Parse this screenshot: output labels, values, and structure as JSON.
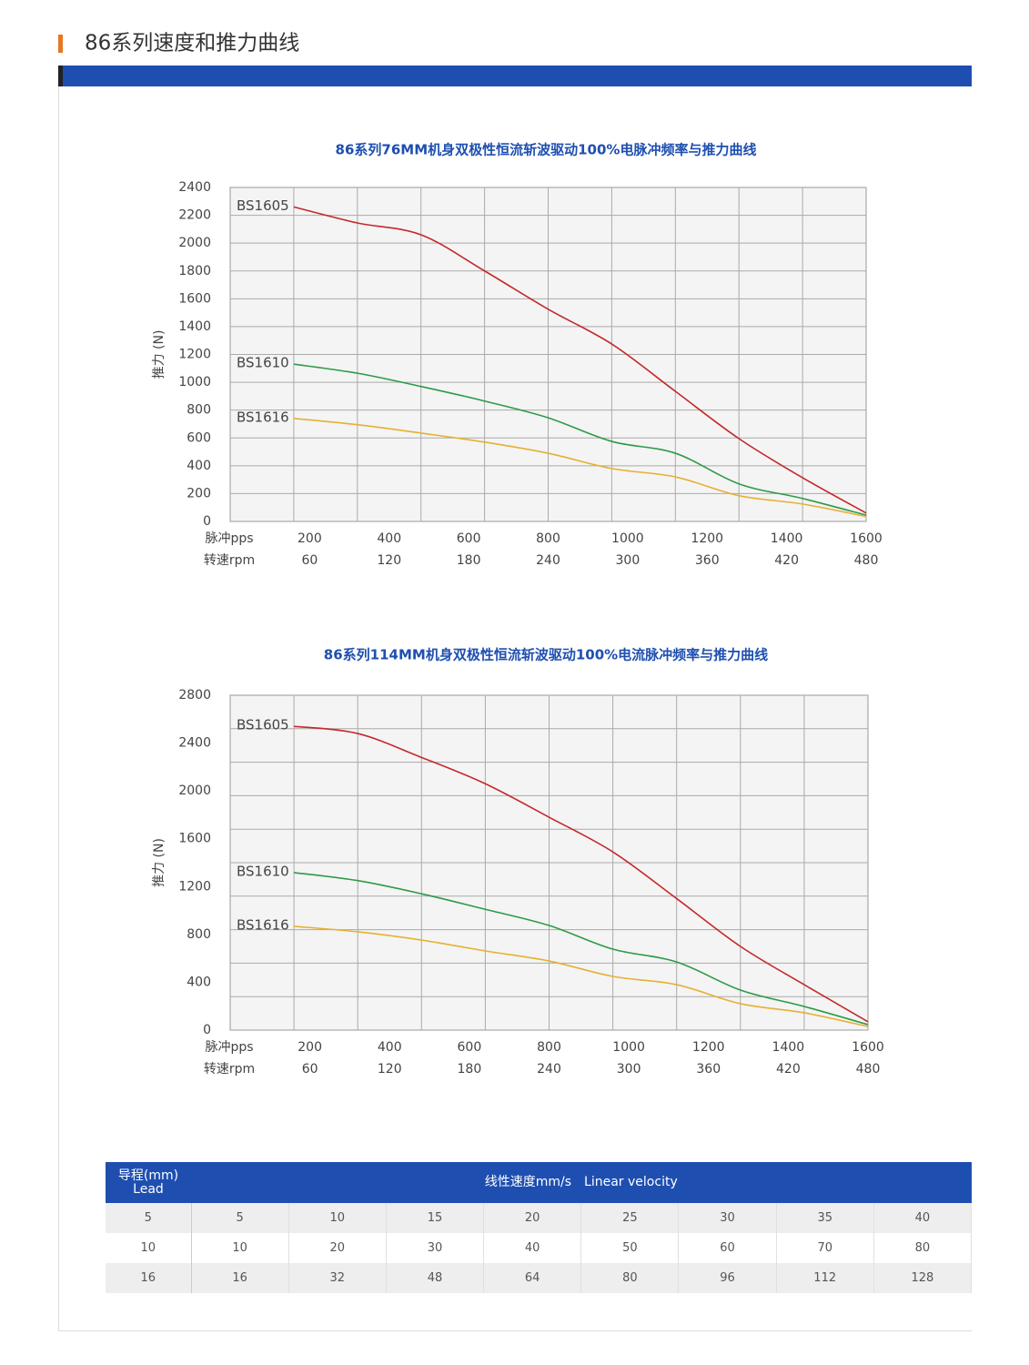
{
  "header": {
    "title": "86系列速度和推力曲线"
  },
  "chart_data": [
    {
      "type": "line",
      "title": "86系列76MM机身双极性恒流斩波驱动100%电脉冲频率与推力曲线",
      "ylabel": "推力 (N)",
      "xlabel": "脉冲pps",
      "rpm_label": "转速rpm",
      "x": [
        160,
        320,
        480,
        640,
        800,
        960,
        1120,
        1280,
        1440,
        1600
      ],
      "xlim": [
        0,
        1600
      ],
      "xticks": [
        200,
        400,
        600,
        800,
        1000,
        1200,
        1400,
        1600
      ],
      "rpm_ticks": [
        60,
        120,
        180,
        240,
        300,
        360,
        420,
        480
      ],
      "xgrid": [
        160,
        320,
        480,
        640,
        800,
        960,
        1120,
        1280,
        1440
      ],
      "ylim": [
        0,
        2400
      ],
      "yticks": [
        0,
        200,
        400,
        600,
        800,
        1000,
        1200,
        1400,
        1600,
        1800,
        2000,
        2200,
        2400
      ],
      "ygrid": [
        200,
        400,
        600,
        800,
        1000,
        1200,
        1400,
        1600,
        1800,
        2000,
        2200
      ],
      "series": [
        {
          "name": "BS1605",
          "color": "#c4292b",
          "values": [
            2260,
            2145,
            2060,
            1800,
            1525,
            1275,
            935,
            595,
            314,
            60
          ]
        },
        {
          "name": "BS1610",
          "color": "#2e9a48",
          "values": [
            1130,
            1065,
            970,
            865,
            745,
            575,
            490,
            270,
            165,
            45
          ]
        },
        {
          "name": "BS1616",
          "color": "#e6b032",
          "values": [
            740,
            695,
            635,
            570,
            490,
            380,
            320,
            185,
            125,
            35
          ]
        }
      ]
    },
    {
      "type": "line",
      "title": "86系列114MM机身双极性恒流斩波驱动100%电流脉冲频率与推力曲线",
      "ylabel": "推力 (N)",
      "xlabel": "脉冲pps",
      "rpm_label": "转速rpm",
      "x": [
        160,
        320,
        480,
        640,
        800,
        960,
        1120,
        1280,
        1440,
        1600
      ],
      "xlim": [
        0,
        1600
      ],
      "xticks": [
        200,
        400,
        600,
        800,
        1000,
        1200,
        1400,
        1600
      ],
      "rpm_ticks": [
        60,
        120,
        180,
        240,
        300,
        360,
        420,
        480
      ],
      "xgrid": [
        160,
        320,
        480,
        640,
        800,
        960,
        1120,
        1280,
        1440
      ],
      "ylim": [
        0,
        2800
      ],
      "yticks": [
        0,
        400,
        800,
        1200,
        1600,
        2000,
        2400,
        2800
      ],
      "ygrid": [
        280,
        560,
        840,
        1120,
        1400,
        1680,
        1960,
        2240,
        2520
      ],
      "series": [
        {
          "name": "BS1605",
          "color": "#c4292b",
          "values": [
            2540,
            2480,
            2280,
            2060,
            1780,
            1490,
            1100,
            700,
            380,
            70
          ]
        },
        {
          "name": "BS1610",
          "color": "#2e9a48",
          "values": [
            1317,
            1250,
            1140,
            1010,
            875,
            677,
            570,
            335,
            198,
            46
          ]
        },
        {
          "name": "BS1616",
          "color": "#e6b032",
          "values": [
            868,
            822,
            753,
            662,
            578,
            449,
            380,
            221,
            145,
            30
          ]
        }
      ]
    }
  ],
  "table": {
    "corner": [
      "导程(mm)",
      "Lead"
    ],
    "span_header": "线性速度mm/s　Linear velocity",
    "rows": [
      [
        "5",
        "5",
        "10",
        "15",
        "20",
        "25",
        "30",
        "35",
        "40"
      ],
      [
        "10",
        "10",
        "20",
        "30",
        "40",
        "50",
        "60",
        "70",
        "80"
      ],
      [
        "16",
        "16",
        "32",
        "48",
        "64",
        "80",
        "96",
        "112",
        "128"
      ]
    ]
  }
}
